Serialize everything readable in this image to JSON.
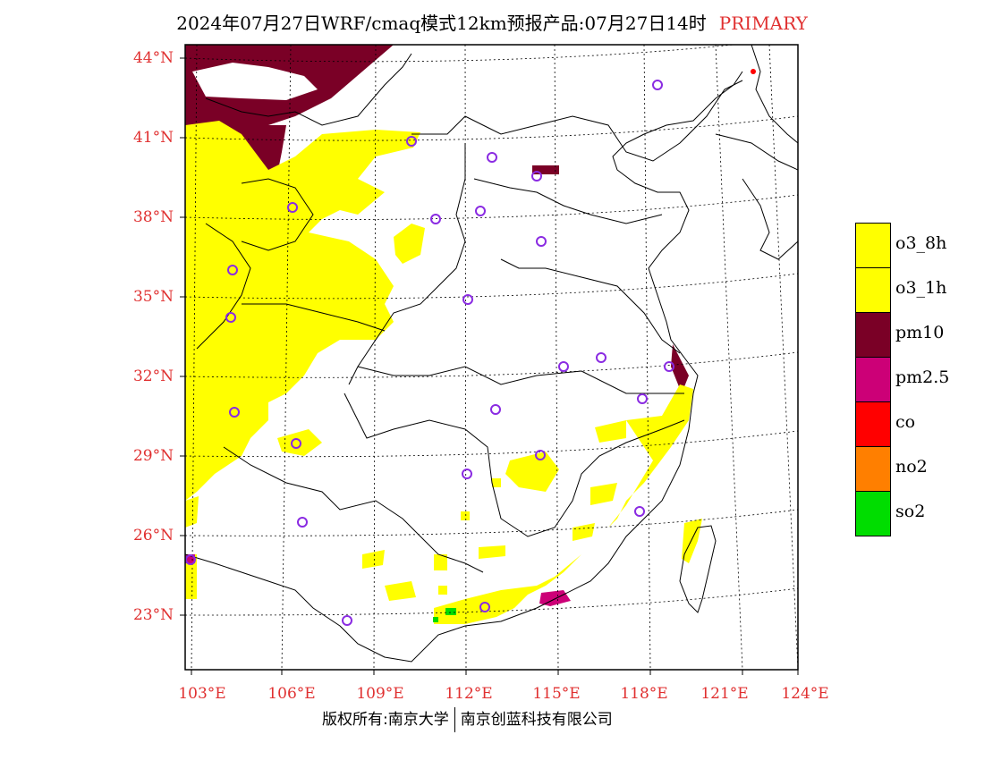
{
  "title": {
    "main": "2024年07月27日WRF/cmaq模式12km预报产品:07月27日14时",
    "tag": "PRIMARY"
  },
  "axes": {
    "lat_ticks": [
      "44°N",
      "41°N",
      "38°N",
      "35°N",
      "32°N",
      "29°N",
      "26°N",
      "23°N"
    ],
    "lon_ticks": [
      "103°E",
      "106°E",
      "109°E",
      "112°E",
      "115°E",
      "118°E",
      "121°E",
      "124°E"
    ]
  },
  "legend": {
    "items": [
      {
        "label": "o3_8h",
        "color": "#ffff00"
      },
      {
        "label": "o3_1h",
        "color": "#ffff00"
      },
      {
        "label": "pm10",
        "color": "#7a0026"
      },
      {
        "label": "pm2.5",
        "color": "#cc0077"
      },
      {
        "label": "co",
        "color": "#ff0000"
      },
      {
        "label": "no2",
        "color": "#ff7f00"
      },
      {
        "label": "so2",
        "color": "#00dd00"
      }
    ]
  },
  "colors": {
    "accent": "#e03030",
    "station_marker": "#8a2be2"
  },
  "footer": {
    "left": "版权所有:南京大学",
    "right": "南京创蓝科技有限公司"
  }
}
